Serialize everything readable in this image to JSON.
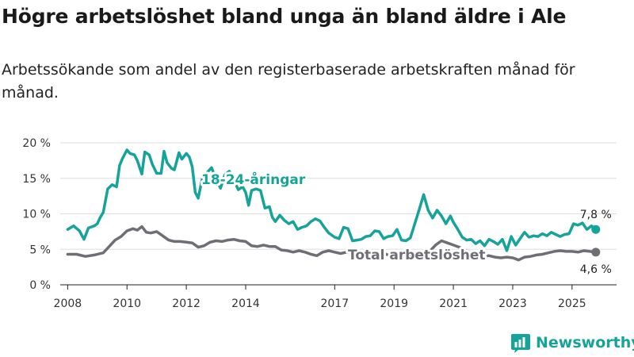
{
  "title": "Högre arbetslöshet bland unga än bland äldre i Ale",
  "subtitle": "Arbetssökande som andel av den registerbaserade arbetskraften månad för månad.",
  "brand": {
    "name": "Newsworthy",
    "color": "#16a39a"
  },
  "chart_data": {
    "type": "line",
    "ylim": [
      0,
      20
    ],
    "xlim": [
      2007.75,
      2026.5
    ],
    "yticks": [
      0,
      5,
      10,
      15,
      20
    ],
    "ytick_labels": [
      "0 %",
      "5 %",
      "10 %",
      "15 %",
      "20 %"
    ],
    "xticks": [
      2008,
      2010,
      2012,
      2014,
      2017,
      2019,
      2021,
      2023,
      2025
    ],
    "xtick_labels": [
      "2008",
      "2010",
      "2012",
      "2014",
      "2017",
      "2019",
      "2021",
      "2023",
      "2025"
    ],
    "grid": true,
    "series": [
      {
        "name": "18-24-åringar",
        "label": "18-24-åringar",
        "color": "#16a39a",
        "end_label": "7,8 %",
        "x": [
          2008.0,
          2008.2,
          2008.4,
          2008.55,
          2008.7,
          2008.9,
          2009.0,
          2009.1,
          2009.2,
          2009.35,
          2009.5,
          2009.65,
          2009.75,
          2009.85,
          2010.0,
          2010.1,
          2010.25,
          2010.35,
          2010.5,
          2010.6,
          2010.75,
          2010.85,
          2011.0,
          2011.15,
          2011.25,
          2011.35,
          2011.5,
          2011.6,
          2011.75,
          2011.85,
          2012.0,
          2012.1,
          2012.2,
          2012.3,
          2012.4,
          2012.55,
          2012.7,
          2012.85,
          2013.0,
          2013.15,
          2013.3,
          2013.45,
          2013.6,
          2013.75,
          2013.9,
          2014.0,
          2014.1,
          2014.2,
          2014.35,
          2014.5,
          2014.65,
          2014.8,
          2014.9,
          2015.0,
          2015.15,
          2015.3,
          2015.45,
          2015.6,
          2015.75,
          2015.9,
          2016.05,
          2016.2,
          2016.35,
          2016.5,
          2016.65,
          2016.8,
          2017.0,
          2017.15,
          2017.3,
          2017.45,
          2017.6,
          2017.75,
          2017.9,
          2018.05,
          2018.2,
          2018.35,
          2018.5,
          2018.65,
          2018.8,
          2018.95,
          2019.1,
          2019.25,
          2019.4,
          2019.55,
          2019.7,
          2019.85,
          2020.0,
          2020.15,
          2020.3,
          2020.45,
          2020.6,
          2020.75,
          2020.9,
          2021.0,
          2021.15,
          2021.3,
          2021.45,
          2021.6,
          2021.75,
          2021.9,
          2022.05,
          2022.2,
          2022.35,
          2022.5,
          2022.65,
          2022.8,
          2022.95,
          2023.1,
          2023.25,
          2023.4,
          2023.55,
          2023.7,
          2023.85,
          2024.0,
          2024.15,
          2024.3,
          2024.45,
          2024.6,
          2024.75,
          2024.9,
          2025.05,
          2025.2,
          2025.35,
          2025.5,
          2025.65,
          2025.8
        ],
        "values": [
          7.8,
          8.3,
          7.6,
          6.4,
          8.0,
          8.3,
          8.6,
          9.5,
          10.2,
          13.5,
          14.1,
          13.8,
          16.8,
          17.8,
          19.0,
          18.5,
          18.3,
          17.5,
          15.6,
          18.7,
          18.3,
          17.0,
          15.7,
          15.7,
          18.8,
          17.2,
          16.4,
          16.2,
          18.6,
          17.7,
          18.5,
          18.0,
          16.6,
          13.0,
          12.2,
          15.2,
          15.8,
          16.5,
          14.9,
          13.6,
          15.5,
          16.0,
          14.8,
          13.4,
          13.8,
          13.0,
          11.2,
          13.3,
          13.5,
          13.3,
          10.8,
          11.0,
          9.5,
          8.9,
          9.8,
          9.1,
          8.6,
          8.9,
          7.8,
          8.1,
          8.3,
          8.9,
          9.3,
          9.0,
          8.1,
          7.3,
          6.7,
          6.5,
          8.1,
          7.9,
          6.2,
          6.3,
          6.4,
          6.8,
          6.9,
          7.6,
          7.5,
          6.5,
          6.8,
          6.9,
          7.8,
          6.3,
          6.2,
          6.6,
          8.6,
          10.6,
          12.7,
          10.5,
          9.4,
          10.5,
          9.7,
          8.6,
          9.7,
          8.8,
          7.8,
          6.7,
          6.3,
          6.4,
          5.8,
          6.2,
          5.5,
          6.4,
          6.1,
          5.7,
          6.4,
          4.8,
          6.8,
          5.6,
          6.5,
          7.4,
          6.7,
          6.9,
          6.8,
          7.2,
          6.9,
          7.4,
          7.1,
          6.8,
          7.1,
          7.2,
          8.6,
          8.4,
          8.7,
          7.8,
          8.3,
          7.8
        ]
      },
      {
        "name": "Total arbetslöshet",
        "label": "Total arbetslöshet",
        "color": "#6e6e74",
        "end_label": "4,6 %",
        "x": [
          2008.0,
          2008.3,
          2008.6,
          2008.9,
          2009.2,
          2009.4,
          2009.6,
          2009.8,
          2010.0,
          2010.2,
          2010.35,
          2010.5,
          2010.65,
          2010.8,
          2011.0,
          2011.2,
          2011.4,
          2011.6,
          2011.8,
          2012.0,
          2012.2,
          2012.4,
          2012.6,
          2012.8,
          2013.0,
          2013.2,
          2013.4,
          2013.6,
          2013.8,
          2014.0,
          2014.2,
          2014.4,
          2014.6,
          2014.8,
          2015.0,
          2015.2,
          2015.4,
          2015.6,
          2015.8,
          2016.0,
          2016.2,
          2016.4,
          2016.6,
          2016.8,
          2017.0,
          2017.2,
          2017.4,
          2017.6,
          2017.8,
          2018.0,
          2018.2,
          2018.4,
          2018.6,
          2018.8,
          2019.0,
          2019.2,
          2019.4,
          2019.6,
          2019.8,
          2020.0,
          2020.2,
          2020.4,
          2020.6,
          2020.8,
          2021.0,
          2021.2,
          2021.4,
          2021.6,
          2021.8,
          2022.0,
          2022.2,
          2022.4,
          2022.6,
          2022.8,
          2023.0,
          2023.2,
          2023.4,
          2023.6,
          2023.8,
          2024.0,
          2024.2,
          2024.4,
          2024.6,
          2024.8,
          2025.0,
          2025.2,
          2025.4,
          2025.6,
          2025.8
        ],
        "values": [
          4.3,
          4.3,
          4.0,
          4.2,
          4.5,
          5.4,
          6.3,
          6.8,
          7.6,
          7.9,
          7.7,
          8.2,
          7.4,
          7.3,
          7.5,
          6.9,
          6.3,
          6.1,
          6.1,
          6.0,
          5.9,
          5.3,
          5.5,
          6.0,
          6.2,
          6.1,
          6.3,
          6.4,
          6.2,
          6.1,
          5.5,
          5.4,
          5.6,
          5.4,
          5.4,
          4.9,
          4.8,
          4.6,
          4.8,
          4.6,
          4.3,
          4.1,
          4.6,
          4.8,
          4.6,
          4.4,
          4.6,
          4.4,
          4.5,
          4.5,
          4.1,
          4.3,
          4.5,
          4.2,
          4.3,
          4.4,
          4.2,
          4.1,
          4.5,
          4.5,
          4.7,
          5.6,
          6.2,
          5.9,
          5.6,
          5.3,
          4.9,
          4.5,
          4.2,
          4.0,
          4.1,
          3.9,
          3.8,
          3.9,
          3.8,
          3.5,
          3.9,
          4.0,
          4.2,
          4.3,
          4.5,
          4.7,
          4.8,
          4.7,
          4.7,
          4.6,
          4.8,
          4.7,
          4.6
        ]
      }
    ]
  }
}
